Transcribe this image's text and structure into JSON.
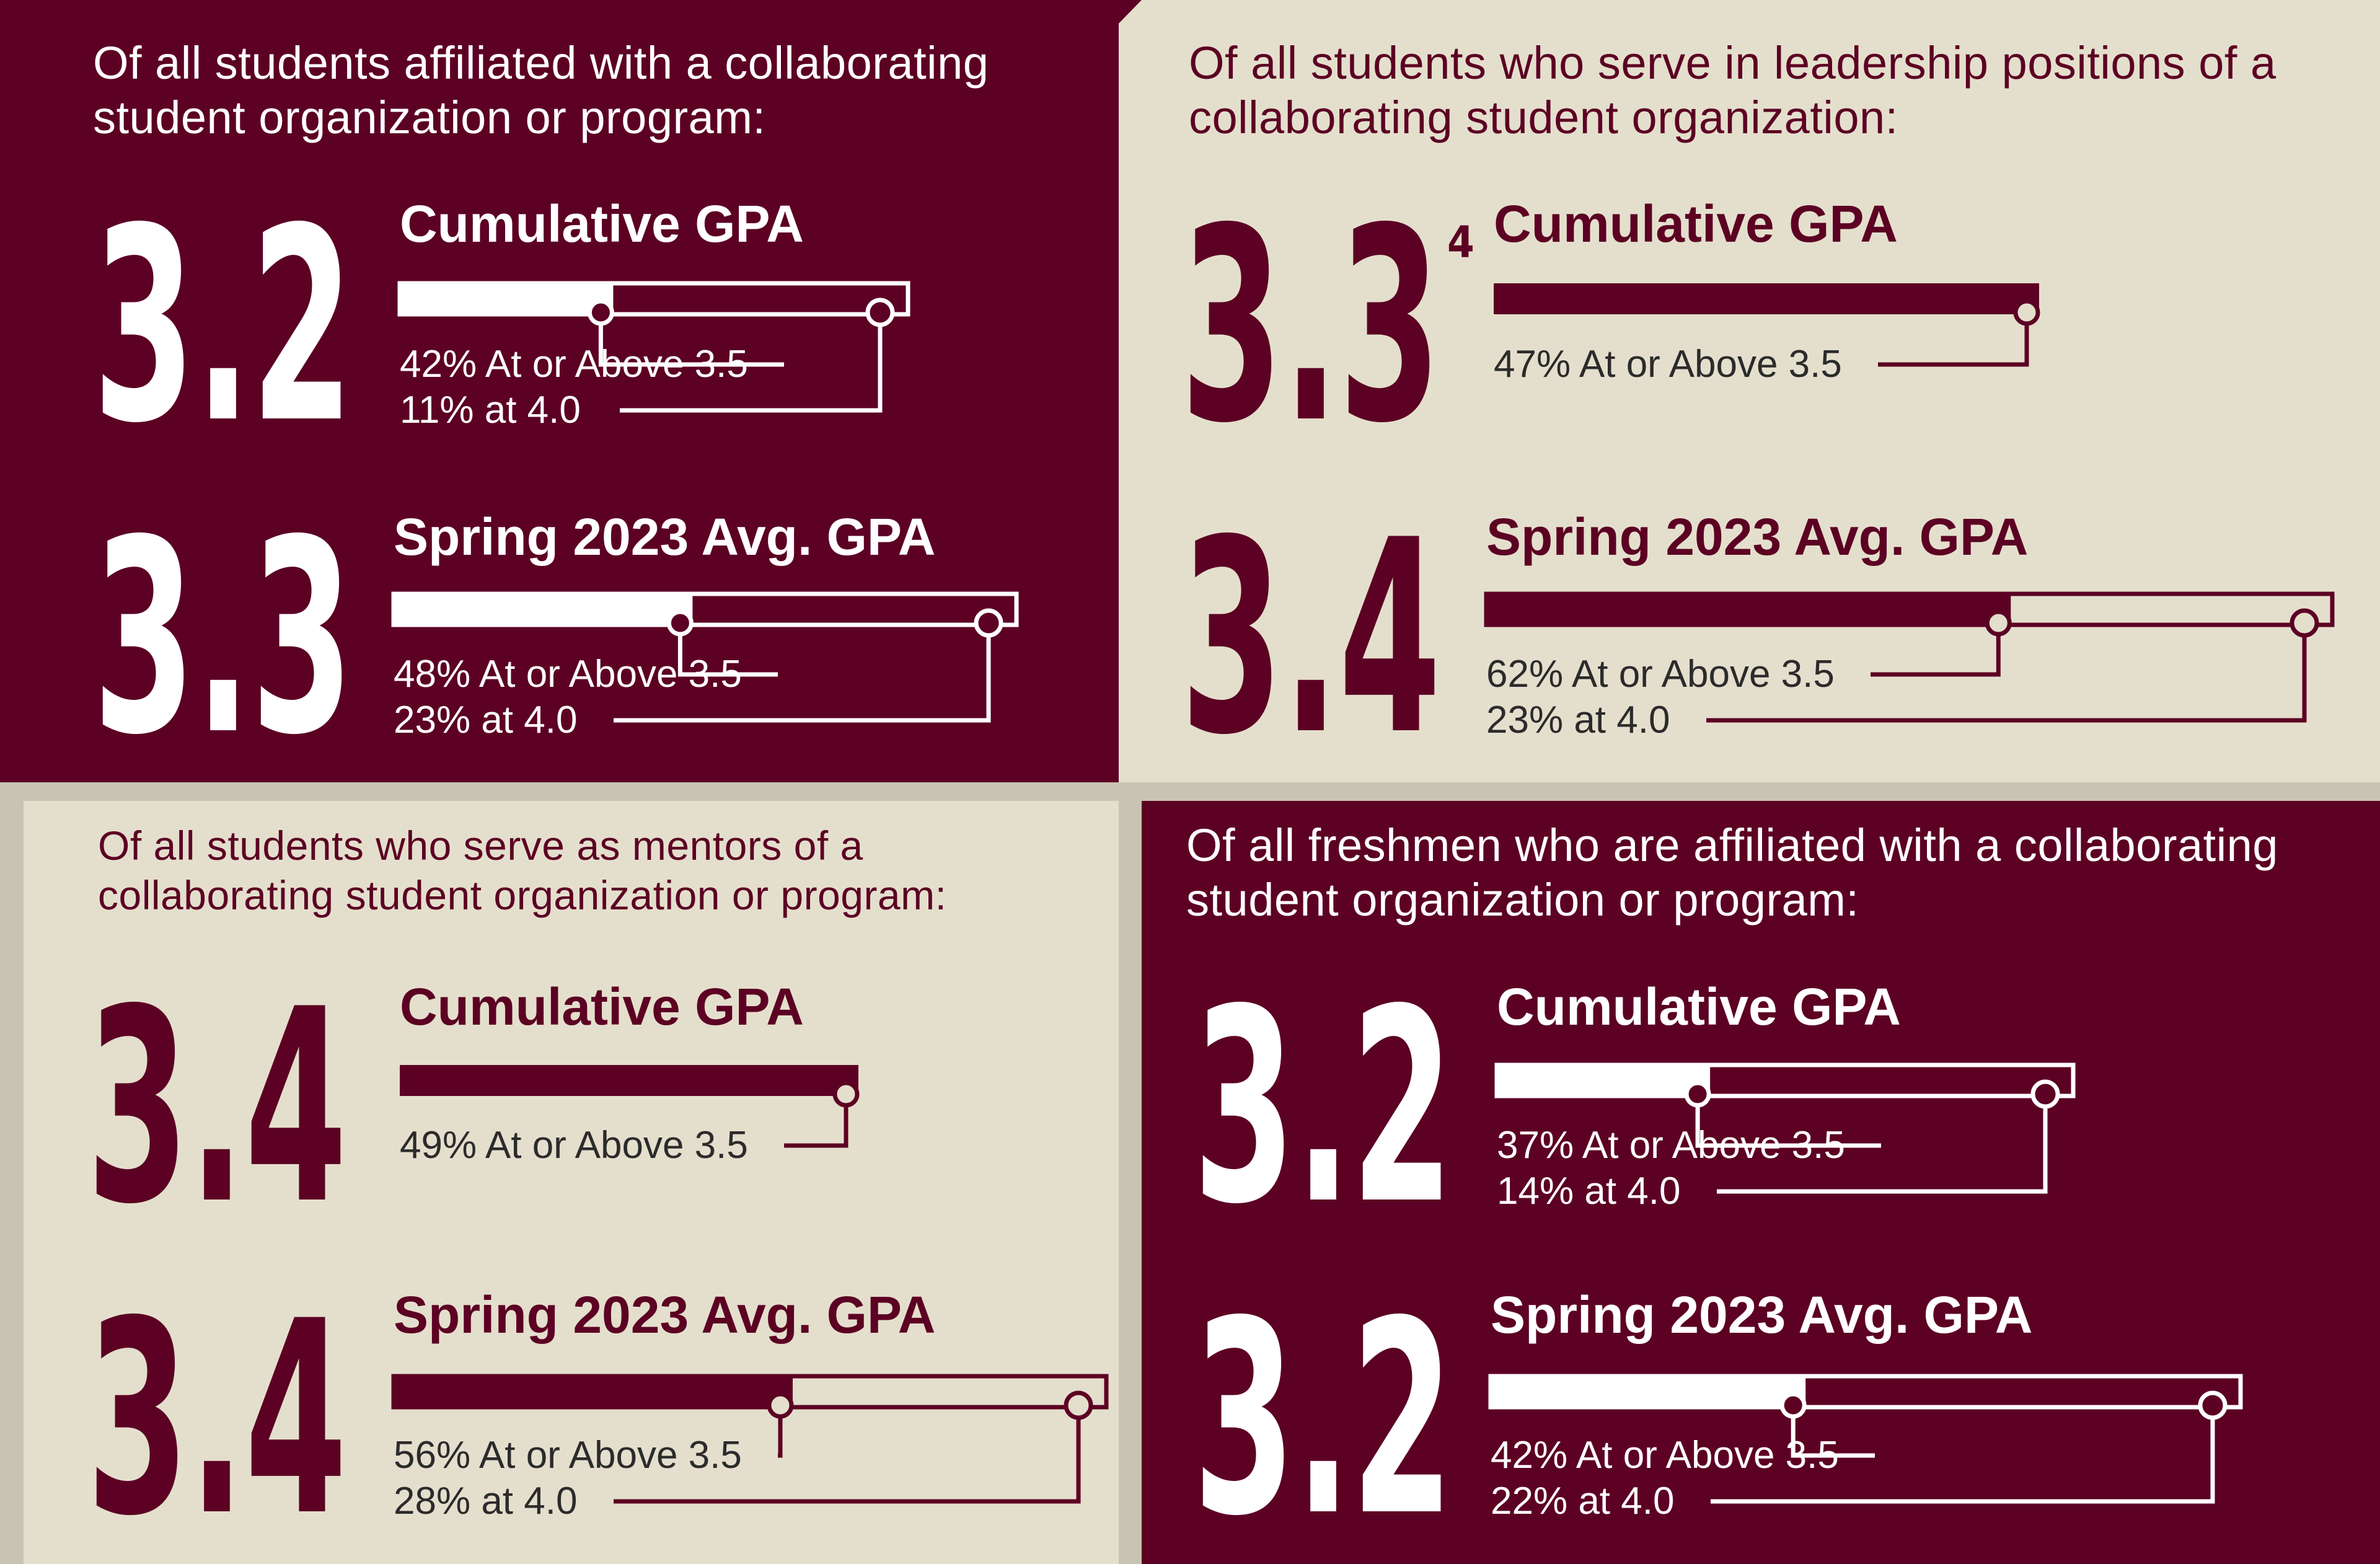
{
  "colors": {
    "maroon": "#5c0123",
    "cream": "#e4dfcd",
    "white": "#ffffff",
    "shadow": "#c9c3b4",
    "label_dark": "#2b2b2b"
  },
  "chart_data": [
    {
      "type": "bar",
      "group": "Of all students affiliated with a collaborating student organization or program:",
      "theme": "dark",
      "stats": [
        {
          "title": "Cumulative GPA",
          "value": "3.2",
          "pct_above_3_5": 42,
          "pct_at_4_0": 11,
          "label_above": "42% At or Above 3.5",
          "label_at": "11% at 4.0"
        },
        {
          "title": "Spring 2023 Avg. GPA",
          "value": "3.3",
          "pct_above_3_5": 48,
          "pct_at_4_0": 23,
          "label_above": "48% At or Above 3.5",
          "label_at": "23% at 4.0"
        }
      ]
    },
    {
      "type": "bar",
      "group": "Of all students who serve in leadership positions of a collaborating student organization:",
      "theme": "light",
      "stats": [
        {
          "title": "Cumulative GPA",
          "value": "3.3",
          "value_suffix": "4",
          "pct_above_3_5": 47,
          "label_above": "47% At or Above 3.5"
        },
        {
          "title": "Spring 2023 Avg. GPA",
          "value": "3.4",
          "pct_above_3_5": 62,
          "pct_at_4_0": 23,
          "label_above": "62% At or Above 3.5",
          "label_at": "23% at 4.0"
        }
      ]
    },
    {
      "type": "bar",
      "group": "Of all students who serve as mentors of a collaborating student organization or program:",
      "theme": "light",
      "stats": [
        {
          "title": "Cumulative GPA",
          "value": "3.4",
          "pct_above_3_5": 49,
          "label_above": "49% At or Above 3.5"
        },
        {
          "title": "Spring 2023 Avg. GPA",
          "value": "3.4",
          "pct_above_3_5": 56,
          "pct_at_4_0": 28,
          "label_above": "56% At or Above 3.5",
          "label_at": "28% at 4.0"
        }
      ]
    },
    {
      "type": "bar",
      "group": "Of all freshmen who are affiliated with a collaborating student organization or program:",
      "theme": "dark",
      "stats": [
        {
          "title": "Cumulative GPA",
          "value": "3.2",
          "pct_above_3_5": 37,
          "pct_at_4_0": 14,
          "label_above": "37% At or Above 3.5",
          "label_at": "14% at 4.0"
        },
        {
          "title": "Spring 2023 Avg. GPA",
          "value": "3.2",
          "pct_above_3_5": 42,
          "pct_at_4_0": 22,
          "label_above": "42% At or Above 3.5",
          "label_at": "22% at 4.0"
        }
      ]
    }
  ]
}
